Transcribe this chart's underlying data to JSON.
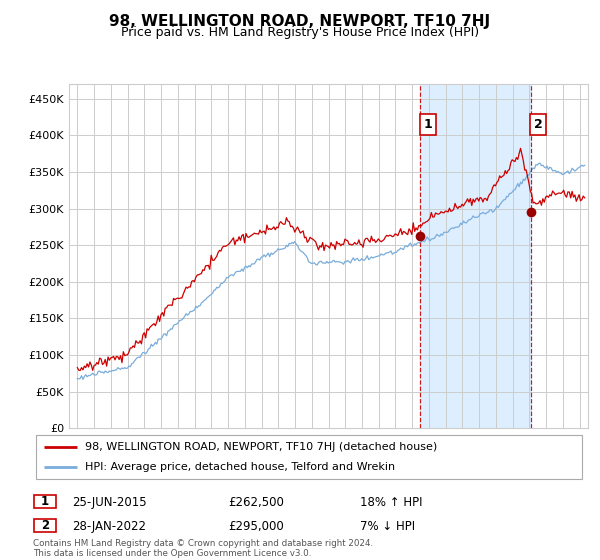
{
  "title": "98, WELLINGTON ROAD, NEWPORT, TF10 7HJ",
  "subtitle": "Price paid vs. HM Land Registry's House Price Index (HPI)",
  "ytick_values": [
    0,
    50000,
    100000,
    150000,
    200000,
    250000,
    300000,
    350000,
    400000,
    450000
  ],
  "ylim": [
    0,
    470000
  ],
  "xlim_start": 1994.5,
  "xlim_end": 2025.5,
  "sale1_x": 2015.48,
  "sale1_y": 262500,
  "sale2_x": 2022.07,
  "sale2_y": 295000,
  "sale1_label": "1",
  "sale2_label": "2",
  "sale1_date": "25-JUN-2015",
  "sale1_price": "£262,500",
  "sale1_hpi": "18% ↑ HPI",
  "sale2_date": "28-JAN-2022",
  "sale2_price": "£295,000",
  "sale2_hpi": "7% ↓ HPI",
  "legend_line1": "98, WELLINGTON ROAD, NEWPORT, TF10 7HJ (detached house)",
  "legend_line2": "HPI: Average price, detached house, Telford and Wrekin",
  "footer": "Contains HM Land Registry data © Crown copyright and database right 2024.\nThis data is licensed under the Open Government Licence v3.0.",
  "price_line_color": "#cc0000",
  "hpi_line_color": "#7aadda",
  "shade_color": "#ddeeff",
  "dashed_line_color": "#cc0000",
  "background_color": "#ffffff",
  "grid_color": "#cccccc",
  "title_fontsize": 11,
  "subtitle_fontsize": 9
}
